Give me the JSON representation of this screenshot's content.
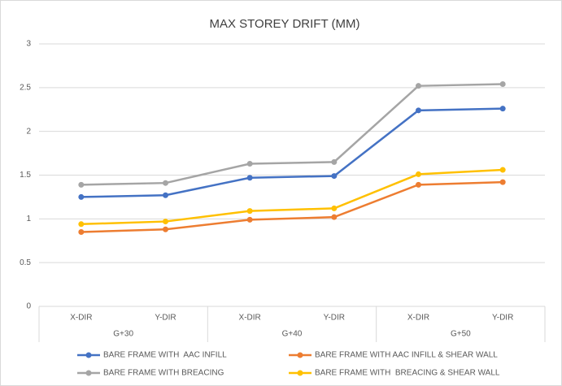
{
  "chart_data": {
    "type": "line",
    "title": "MAX STOREY DRIFT (MM)",
    "categories": [
      "X-DIR",
      "Y-DIR",
      "X-DIR",
      "Y-DIR",
      "X-DIR",
      "Y-DIR"
    ],
    "groups": [
      "G+30",
      "G+40",
      "G+50"
    ],
    "series": [
      {
        "name": "BARE FRAME WITH  AAC INFILL",
        "color": "#4472c4",
        "values": [
          1.25,
          1.27,
          1.47,
          1.49,
          2.24,
          2.26
        ]
      },
      {
        "name": "BARE FRAME WITH AAC INFILL & SHEAR WALL",
        "color": "#ed7d31",
        "values": [
          0.85,
          0.88,
          0.99,
          1.02,
          1.39,
          1.42
        ]
      },
      {
        "name": "BARE FRAME WITH BREACING",
        "color": "#a5a5a5",
        "values": [
          1.39,
          1.41,
          1.63,
          1.65,
          2.52,
          2.54
        ]
      },
      {
        "name": "BARE FRAME WITH  BREACING & SHEAR WALL",
        "color": "#ffc000",
        "values": [
          0.94,
          0.97,
          1.09,
          1.12,
          1.51,
          1.56
        ]
      }
    ],
    "ylim": [
      0,
      3
    ],
    "yticks": [
      0,
      0.5,
      1,
      1.5,
      2,
      2.5,
      3
    ],
    "grid": true,
    "legend": "bottom"
  }
}
